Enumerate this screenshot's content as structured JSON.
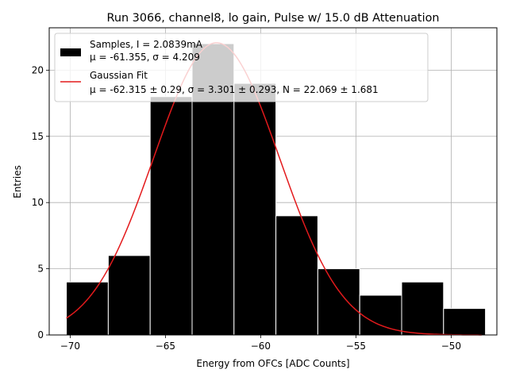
{
  "chart_data": {
    "type": "bar",
    "title": "Run 3066, channel8, lo gain, Pulse w/ 15.0 dB Attenuation",
    "xlabel": "Energy from OFCs [ADC Counts]",
    "ylabel": "Entries",
    "xlim": [
      -71.1,
      -47.6
    ],
    "ylim": [
      0,
      23.2
    ],
    "xticks": [
      -70,
      -65,
      -60,
      -55,
      -50
    ],
    "xtick_labels": [
      "−70",
      "−65",
      "−60",
      "−55",
      "−50"
    ],
    "yticks": [
      0,
      5,
      10,
      15,
      20
    ],
    "ytick_labels": [
      "0",
      "5",
      "10",
      "15",
      "20"
    ],
    "grid": true,
    "legend_position": "top-left",
    "histogram": {
      "name": "Samples",
      "color": "#000000",
      "bin_edges": [
        -70.2,
        -68.0,
        -65.8,
        -63.6,
        -61.4,
        -59.2,
        -57.0,
        -54.8,
        -52.6,
        -50.4,
        -48.2
      ],
      "counts": [
        4,
        6,
        18,
        22,
        19,
        9,
        5,
        3,
        4,
        2
      ]
    },
    "fit": {
      "name": "Gaussian Fit",
      "color": "#e31a1c",
      "mu": -62.315,
      "sigma": 3.301,
      "N": 22.069,
      "x_range": [
        -70.2,
        -48.4
      ]
    },
    "legend": [
      {
        "line1": "Samples, I = 2.0839mA",
        "line2": "μ = -61.355, σ = 4.209"
      },
      {
        "line1": "Gaussian Fit",
        "line2": "μ = -62.315 ± 0.29, σ = 3.301 ± 0.293, N = 22.069 ± 1.681"
      }
    ]
  }
}
